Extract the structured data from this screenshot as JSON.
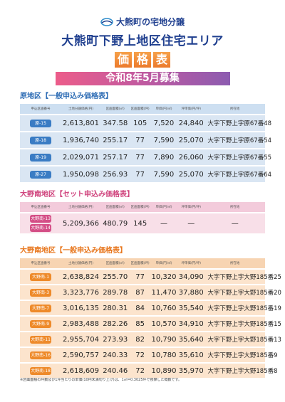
{
  "header": {
    "logo_text": "大熊町の宅地分譲",
    "title": "大熊町下野上地区住宅エリア",
    "price_label": [
      "価",
      "格",
      "表"
    ],
    "banner": "令和8年5月募集"
  },
  "sections": [
    {
      "title": "原地区【一般申込み価格表】",
      "theme": "blue",
      "columns": [
        "申込区画番号",
        "土地分譲価格(円)",
        "区画面積(㎡)",
        "区画面積(坪)",
        "単価(円/㎡)",
        "坪単価(円/坪)",
        "所在地"
      ],
      "rows": [
        [
          [
            "原-15"
          ],
          "2,613,801",
          "347.58",
          "105",
          "7,520",
          "24,840",
          "大字下野上字原67番48"
        ],
        [
          [
            "原-18"
          ],
          "1,936,740",
          "255.17",
          "77",
          "7,590",
          "25,070",
          "大字下野上字原67番54"
        ],
        [
          [
            "原-19"
          ],
          "2,029,071",
          "257.17",
          "77",
          "7,890",
          "26,060",
          "大字下野上字原67番55"
        ],
        [
          [
            "原-27"
          ],
          "1,950,098",
          "256.93",
          "77",
          "7,590",
          "25,070",
          "大字下野上字原67番64"
        ]
      ]
    },
    {
      "title": "大野南地区【セット申込み価格表】",
      "theme": "pink",
      "columns": [
        "申込区画番号",
        "土地分譲価格(円)",
        "区画面積(㎡)",
        "区画面積(坪)",
        "単価(円/㎡)",
        "坪単価(円/坪)",
        "所在地"
      ],
      "rows": [
        [
          [
            "大野南-13",
            "大野南-14"
          ],
          "5,209,366",
          "480.79",
          "145",
          "—",
          "—",
          "—"
        ]
      ]
    },
    {
      "title": "大野南地区【一般申込み価格表】",
      "theme": "orange",
      "columns": [
        "申込区画番号",
        "土地分譲価格(円)",
        "区画面積(㎡)",
        "区画面積(坪)",
        "単価(円/㎡)",
        "坪単価(円/坪)",
        "所在地"
      ],
      "rows": [
        [
          [
            "大野南-1"
          ],
          "2,638,824",
          "255.70",
          "77",
          "10,320",
          "34,090",
          "大字下野上字大野185番25"
        ],
        [
          [
            "大野南-3"
          ],
          "3,323,776",
          "289.78",
          "87",
          "11,470",
          "37,880",
          "大字下野上字大野185番20"
        ],
        [
          [
            "大野南-7"
          ],
          "3,016,135",
          "280.31",
          "84",
          "10,760",
          "35,540",
          "大字下野上字大野185番19"
        ],
        [
          [
            "大野南-9"
          ],
          "2,983,488",
          "282.26",
          "85",
          "10,570",
          "34,910",
          "大字下野上字大野185番15"
        ],
        [
          [
            "大野南-11"
          ],
          "2,955,704",
          "273.93",
          "82",
          "10,790",
          "35,640",
          "大字下野上字大野185番13"
        ],
        [
          [
            "大野南-16"
          ],
          "2,590,757",
          "240.33",
          "72",
          "10,780",
          "35,610",
          "大字下野上字大野185番9"
        ],
        [
          [
            "大野南-18"
          ],
          "2,618,609",
          "240.46",
          "72",
          "10,890",
          "35,970",
          "大字下野上字大野185番8"
        ]
      ]
    }
  ],
  "footnote": "※区画面積の坪数及び1坪当たりの単価(10円未満切り上げ)は、1㎡=0.3025坪で換算した概数です。"
}
